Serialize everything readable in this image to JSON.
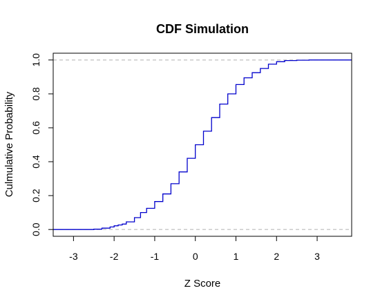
{
  "chart_data": {
    "type": "line",
    "title": "CDF Simulation",
    "xlabel": "Z Score",
    "ylabel": "Culmulative Probability",
    "xlim": [
      -3.5,
      3.85
    ],
    "ylim": [
      -0.04,
      1.04
    ],
    "x_ticks": [
      -3,
      -2,
      -1,
      0,
      1,
      2,
      3
    ],
    "x_tick_labels": [
      "-3",
      "-2",
      "-1",
      "0",
      "1",
      "2",
      "3"
    ],
    "y_ticks": [
      0.0,
      0.2,
      0.4,
      0.6,
      0.8,
      1.0
    ],
    "y_tick_labels": [
      "0.0",
      "0.2",
      "0.4",
      "0.6",
      "0.8",
      "1.0"
    ],
    "reference_lines": [
      0,
      1
    ],
    "grid": false,
    "series": [
      {
        "color": "#0000cc",
        "x": [
          -3.5,
          -2.8,
          -2.5,
          -2.3,
          -2.1,
          -2.0,
          -1.9,
          -1.8,
          -1.7,
          -1.5,
          -1.35,
          -1.2,
          -1.0,
          -0.8,
          -0.6,
          -0.4,
          -0.2,
          0.0,
          0.2,
          0.4,
          0.6,
          0.8,
          1.0,
          1.2,
          1.4,
          1.6,
          1.8,
          2.0,
          2.2,
          2.5,
          2.8,
          3.85
        ],
        "y": [
          0.0,
          0.0,
          0.002,
          0.008,
          0.015,
          0.022,
          0.027,
          0.032,
          0.045,
          0.07,
          0.1,
          0.125,
          0.165,
          0.21,
          0.27,
          0.34,
          0.42,
          0.5,
          0.58,
          0.66,
          0.74,
          0.8,
          0.855,
          0.895,
          0.925,
          0.95,
          0.975,
          0.99,
          0.997,
          0.999,
          1.0,
          1.0
        ]
      }
    ]
  }
}
